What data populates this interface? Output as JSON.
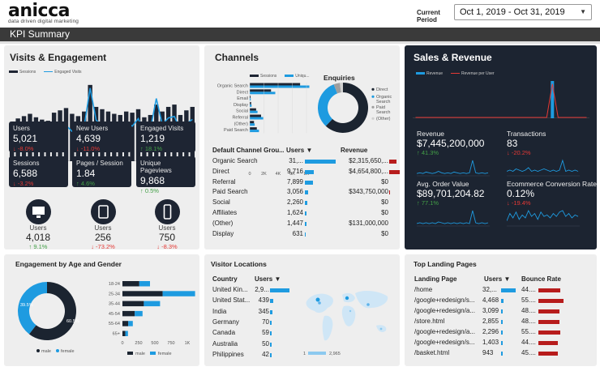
{
  "header": {
    "logo": "anicca",
    "tagline": "data driven digital marketing",
    "period_label": "Current Period",
    "date_range": "Oct 1, 2019 - Oct 31, 2019",
    "page_title": "KPI Summary"
  },
  "visits": {
    "title": "Visits & Engagement",
    "legend": [
      "Sessions",
      "Engaged Visits"
    ],
    "tiles": [
      {
        "label": "Users",
        "value": "5,021",
        "delta": "-8.0%",
        "dir": "down"
      },
      {
        "label": "New Users",
        "value": "4,639",
        "delta": "-11.0%",
        "dir": "down"
      },
      {
        "label": "Engaged Visits",
        "value": "1,219",
        "delta": "18.1%",
        "dir": "up"
      },
      {
        "label": "Sessions",
        "value": "6,588",
        "delta": "-3.2%",
        "dir": "down"
      },
      {
        "label": "Pages / Session",
        "value": "1.84",
        "delta": "4.6%",
        "dir": "up"
      },
      {
        "label": "Unique Pageviews",
        "value": "9,868",
        "delta": "0.5%",
        "dir": "up"
      }
    ],
    "devices": [
      {
        "icon": "desktop-icon",
        "label": "Users",
        "value": "4,018",
        "delta": "9.1%",
        "dir": "up"
      },
      {
        "icon": "tablet-icon",
        "label": "Users",
        "value": "256",
        "delta": "-73.2%",
        "dir": "down"
      },
      {
        "icon": "mobile-icon",
        "label": "Users",
        "value": "750",
        "delta": "-8.3%",
        "dir": "down"
      }
    ],
    "chart_data": {
      "type": "bar",
      "series": [
        {
          "name": "Sessions",
          "values": [
            170,
            185,
            195,
            205,
            190,
            180,
            175,
            210,
            220,
            230,
            205,
            195,
            215,
            330,
            235,
            225,
            215,
            205,
            200,
            215,
            210,
            225,
            190,
            200,
            245,
            215,
            235,
            245,
            200,
            220,
            235
          ]
        },
        {
          "name": "Engaged Visits",
          "values": [
            30,
            35,
            34,
            38,
            36,
            33,
            31,
            42,
            45,
            48,
            40,
            38,
            46,
            98,
            55,
            48,
            44,
            40,
            42,
            52,
            47,
            57,
            38,
            42,
            84,
            49,
            58,
            60,
            42,
            50,
            56
          ]
        }
      ]
    }
  },
  "channels": {
    "title": "Channels",
    "legend": [
      "Sessions",
      "Uniqu..."
    ],
    "bar_chart": {
      "type": "bar",
      "categories": [
        "Organic Search",
        "Direct",
        "Email",
        "Display",
        "Social",
        "Referral",
        "(Other)",
        "Paid Search"
      ],
      "series": [
        {
          "name": "Sessions",
          "values": [
            7100,
            3000,
            120,
            200,
            900,
            1600,
            600,
            1000
          ]
        },
        {
          "name": "Unique Pageviews",
          "values": [
            8400,
            3600,
            140,
            260,
            1100,
            1900,
            700,
            1300
          ]
        }
      ],
      "xticks": [
        "0",
        "2K",
        "4K",
        "6K",
        "8K"
      ]
    },
    "enquiries": {
      "title": "Enquiries",
      "legend": [
        "Direct",
        "Organic Search",
        "Paid Search",
        "(Other)"
      ],
      "chart_data": {
        "type": "pie",
        "labels": [
          "Direct",
          "Organic Search",
          "Paid Search",
          "(Other)"
        ],
        "values": [
          62,
          32,
          4,
          2
        ],
        "colors": [
          "#1b2430",
          "#1e9be0",
          "#9e9e9e",
          "#d0d0d0"
        ]
      }
    },
    "table": {
      "headers": [
        "Default Channel Grou...",
        "Users",
        "Revenue"
      ],
      "rows": [
        {
          "name": "Organic Search",
          "users": "31,...",
          "users_pct": 1.0,
          "revenue": "$2,315,650,...",
          "rev_pct": 0.5
        },
        {
          "name": "Direct",
          "users": "9,716",
          "users_pct": 0.3,
          "revenue": "$4,654,800,...",
          "rev_pct": 1.0
        },
        {
          "name": "Referral",
          "users": "7,899",
          "users_pct": 0.25,
          "revenue": "$0",
          "rev_pct": 0
        },
        {
          "name": "Paid Search",
          "users": "3,056",
          "users_pct": 0.1,
          "revenue": "$343,750,000",
          "rev_pct": 0.08
        },
        {
          "name": "Social",
          "users": "2,260",
          "users_pct": 0.07,
          "revenue": "$0",
          "rev_pct": 0
        },
        {
          "name": "Affiliates",
          "users": "1,624",
          "users_pct": 0.05,
          "revenue": "$0",
          "rev_pct": 0
        },
        {
          "name": "(Other)",
          "users": "1,447",
          "users_pct": 0.045,
          "revenue": "$131,000,000",
          "rev_pct": 0
        },
        {
          "name": "Display",
          "users": "631",
          "users_pct": 0.02,
          "revenue": "$0",
          "rev_pct": 0
        }
      ]
    }
  },
  "sales": {
    "title": "Sales & Revenue",
    "legend": [
      "Revenue",
      "Revenue per User"
    ],
    "metrics": [
      {
        "label": "Revenue",
        "value": "$7,445,200,000",
        "delta": "41.3%",
        "dir": "up"
      },
      {
        "label": "Transactions",
        "value": "83",
        "delta": "-20.2%",
        "dir": "down"
      },
      {
        "label": "Avg. Order Value",
        "value": "$89,701,204.82",
        "delta": "77.1%",
        "dir": "up"
      },
      {
        "label": "Ecommerce Conversion Rate",
        "value": "0.12%",
        "delta": "-19.4%",
        "dir": "down"
      }
    ],
    "chart_data": {
      "type": "bar",
      "series": [
        {
          "name": "Revenue",
          "values": [
            0,
            0,
            0,
            0,
            0,
            0,
            0,
            0,
            0,
            0,
            0,
            0,
            0,
            0,
            0,
            0,
            0,
            0,
            0,
            0,
            0,
            0,
            0,
            0,
            10,
            0,
            0,
            0,
            0,
            0,
            0
          ]
        },
        {
          "name": "Revenue per User",
          "values": [
            0,
            0,
            0,
            0,
            0,
            0,
            0,
            0,
            0,
            0,
            0,
            0,
            0,
            0,
            0,
            0,
            0,
            0,
            0,
            0,
            0,
            0,
            0,
            0,
            9,
            0,
            0,
            0,
            0,
            0,
            0
          ]
        }
      ]
    }
  },
  "engagement": {
    "title": "Engagement by Age and Gender",
    "donut": {
      "type": "pie",
      "labels": [
        "male",
        "female"
      ],
      "values": [
        60.5,
        39.5
      ],
      "display": [
        "60.5%",
        "39.5%"
      ],
      "colors": [
        "#1b2430",
        "#1e9be0"
      ]
    },
    "bars": {
      "type": "bar",
      "categories": [
        "18-24",
        "25-34",
        "35-44",
        "45-54",
        "55-64",
        "65+"
      ],
      "series": [
        {
          "name": "male",
          "values": [
            260,
            620,
            330,
            190,
            90,
            45
          ]
        },
        {
          "name": "female",
          "values": [
            165,
            500,
            250,
            120,
            70,
            40
          ]
        }
      ],
      "xticks": [
        "0",
        "250",
        "500",
        "750",
        "1K"
      ]
    },
    "legend": [
      "male",
      "female"
    ]
  },
  "locations": {
    "title": "Visitor Locations",
    "headers": [
      "Country",
      "Users"
    ],
    "rows": [
      {
        "country": "United Kin...",
        "users": "2,9...",
        "pct": 1.0
      },
      {
        "country": "United Stat...",
        "users": "439",
        "pct": 0.15
      },
      {
        "country": "India",
        "users": "345",
        "pct": 0.12
      },
      {
        "country": "Germany",
        "users": "70",
        "pct": 0.025
      },
      {
        "country": "Canada",
        "users": "59",
        "pct": 0.02
      },
      {
        "country": "Australia",
        "users": "50",
        "pct": 0.017
      },
      {
        "country": "Philippines",
        "users": "42",
        "pct": 0.014
      }
    ],
    "map_legend": [
      "1",
      "2,965"
    ]
  },
  "landing": {
    "title": "Top Landing Pages",
    "headers": [
      "Landing Page",
      "Users",
      "Bounce Rate"
    ],
    "rows": [
      {
        "page": "/home",
        "users": "32,...",
        "pct": 1.0,
        "bounce": "44....",
        "bounce_pct": 0.8
      },
      {
        "page": "/google+redesign/s...",
        "users": "4,468",
        "pct": 0.14,
        "bounce": "55....",
        "bounce_pct": 0.9
      },
      {
        "page": "/google+redesign/a...",
        "users": "3,099",
        "pct": 0.1,
        "bounce": "48....",
        "bounce_pct": 0.75
      },
      {
        "page": "/store.html",
        "users": "2,855",
        "pct": 0.09,
        "bounce": "48....",
        "bounce_pct": 0.75
      },
      {
        "page": "/google+redesign/a...",
        "users": "2,296",
        "pct": 0.07,
        "bounce": "55....",
        "bounce_pct": 0.78
      },
      {
        "page": "/google+redesign/s...",
        "users": "1,403",
        "pct": 0.045,
        "bounce": "44....",
        "bounce_pct": 0.7
      },
      {
        "page": "/basket.html",
        "users": "943",
        "pct": 0.03,
        "bounce": "45....",
        "bounce_pct": 0.72
      }
    ]
  },
  "colors": {
    "dark": "#1e2533",
    "accent": "#1e9be0",
    "neg": "#e53935",
    "pos": "#43a047",
    "revenue_bar": "#b71c1c"
  }
}
